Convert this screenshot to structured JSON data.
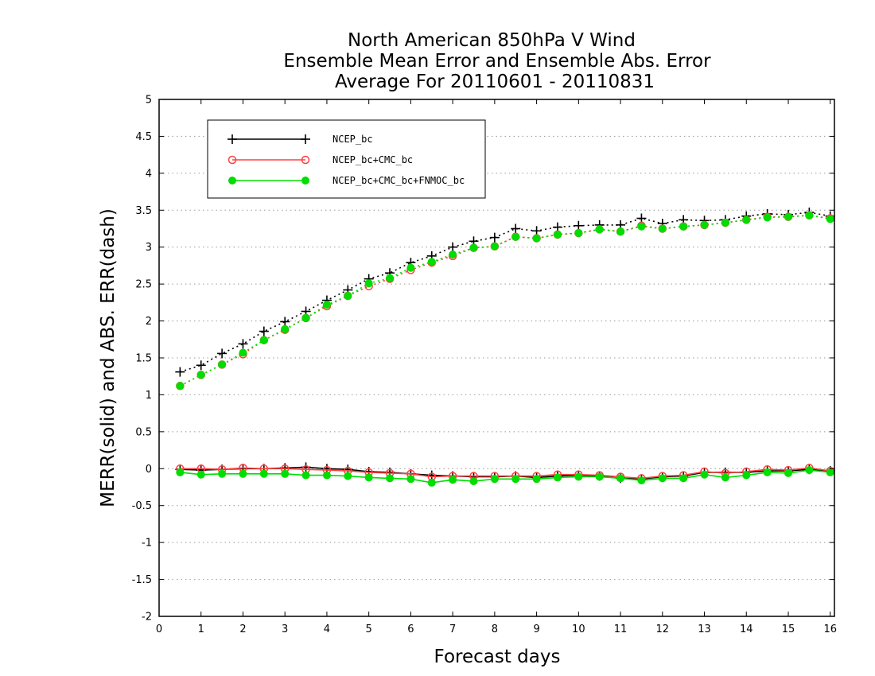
{
  "chart_data": {
    "type": "line",
    "title": [
      "North American 850hPa V Wind",
      "Ensemble Mean Error and Ensemble Abs. Error",
      "Average For 20110601 - 20110831"
    ],
    "xlabel": "Forecast days",
    "ylabel": "MERR(solid) and ABS. ERR(dash)",
    "xlim": [
      0,
      16.1
    ],
    "ylim": [
      -2,
      5
    ],
    "x_ticks": [
      0,
      1,
      2,
      3,
      4,
      5,
      6,
      7,
      8,
      9,
      10,
      11,
      12,
      13,
      14,
      15,
      16
    ],
    "y_ticks": [
      -2,
      -1.5,
      -1,
      -0.5,
      0,
      0.5,
      1,
      1.5,
      2,
      2.5,
      3,
      3.5,
      4,
      4.5,
      5
    ],
    "y_grid": true,
    "legend_position": "top-left",
    "x": [
      0.5,
      1,
      1.5,
      2,
      2.5,
      3,
      3.5,
      4,
      4.5,
      5,
      5.5,
      6,
      6.5,
      7,
      7.5,
      8,
      8.5,
      9,
      9.5,
      10,
      10.5,
      11,
      11.5,
      12,
      12.5,
      13,
      13.5,
      14,
      14.5,
      15,
      15.5,
      16
    ],
    "series": [
      {
        "name": "NCEP_bc",
        "color": "#000000",
        "marker": "plus",
        "mean_error": [
          -0.01,
          -0.02,
          -0.01,
          0.0,
          0.0,
          0.01,
          0.02,
          0.0,
          -0.01,
          -0.04,
          -0.05,
          -0.07,
          -0.09,
          -0.1,
          -0.11,
          -0.11,
          -0.1,
          -0.12,
          -0.1,
          -0.09,
          -0.1,
          -0.13,
          -0.14,
          -0.11,
          -0.1,
          -0.05,
          -0.05,
          -0.05,
          -0.03,
          -0.03,
          -0.01,
          -0.03
        ],
        "abs_error": [
          1.31,
          1.4,
          1.56,
          1.69,
          1.86,
          1.99,
          2.13,
          2.28,
          2.42,
          2.57,
          2.65,
          2.79,
          2.88,
          3.0,
          3.08,
          3.13,
          3.25,
          3.22,
          3.27,
          3.29,
          3.3,
          3.3,
          3.39,
          3.32,
          3.37,
          3.36,
          3.37,
          3.42,
          3.45,
          3.44,
          3.47,
          3.42
        ]
      },
      {
        "name": "NCEP_bc+CMC_bc",
        "color": "#ff4040",
        "marker": "open-circle",
        "mean_error": [
          0.0,
          0.0,
          -0.01,
          0.01,
          0.0,
          0.0,
          -0.01,
          -0.02,
          -0.03,
          -0.05,
          -0.06,
          -0.07,
          -0.11,
          -0.1,
          -0.1,
          -0.1,
          -0.1,
          -0.1,
          -0.08,
          -0.08,
          -0.09,
          -0.11,
          -0.13,
          -0.1,
          -0.09,
          -0.04,
          -0.06,
          -0.04,
          -0.01,
          -0.02,
          0.01,
          -0.03
        ],
        "abs_error": [
          1.12,
          1.27,
          1.41,
          1.55,
          1.74,
          1.88,
          2.04,
          2.2,
          2.34,
          2.47,
          2.57,
          2.69,
          2.79,
          2.88,
          2.99,
          3.01,
          3.14,
          3.12,
          3.17,
          3.19,
          3.24,
          3.21,
          3.29,
          3.25,
          3.28,
          3.3,
          3.33,
          3.37,
          3.41,
          3.41,
          3.43,
          3.39
        ]
      },
      {
        "name": "NCEP_bc+CMC_bc+FNMOC_bc",
        "color": "#00dd00",
        "marker": "filled-circle",
        "mean_error": [
          -0.05,
          -0.08,
          -0.07,
          -0.07,
          -0.07,
          -0.07,
          -0.09,
          -0.09,
          -0.1,
          -0.12,
          -0.13,
          -0.14,
          -0.19,
          -0.15,
          -0.17,
          -0.14,
          -0.14,
          -0.14,
          -0.12,
          -0.11,
          -0.11,
          -0.13,
          -0.16,
          -0.13,
          -0.13,
          -0.08,
          -0.12,
          -0.09,
          -0.05,
          -0.06,
          -0.02,
          -0.05
        ],
        "abs_error": [
          1.12,
          1.27,
          1.41,
          1.57,
          1.74,
          1.89,
          2.04,
          2.22,
          2.34,
          2.51,
          2.58,
          2.72,
          2.8,
          2.9,
          2.99,
          3.01,
          3.14,
          3.12,
          3.17,
          3.19,
          3.24,
          3.21,
          3.28,
          3.25,
          3.28,
          3.3,
          3.33,
          3.37,
          3.4,
          3.41,
          3.43,
          3.38
        ]
      }
    ]
  }
}
